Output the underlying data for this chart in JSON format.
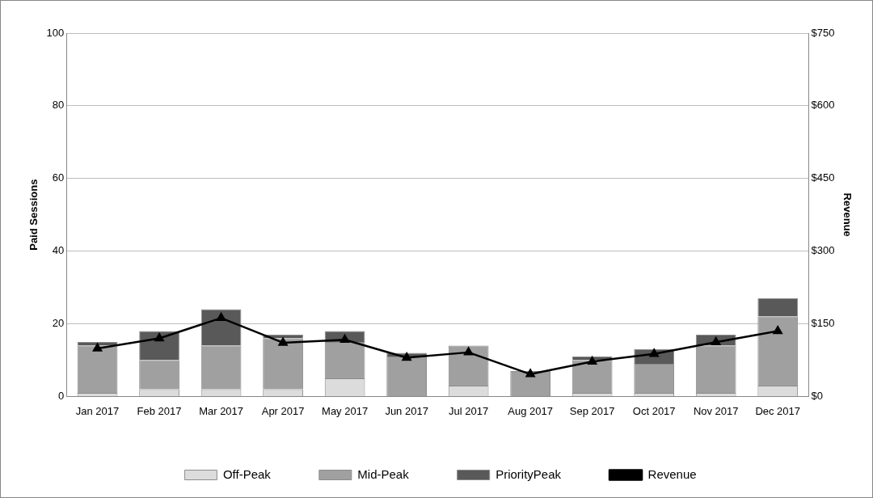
{
  "chart_data": {
    "type": "bar",
    "stacked": true,
    "ylabel": "Paid Sessions",
    "y2label": "Revenue",
    "categories": [
      "Jan 2017",
      "Feb 2017",
      "Mar 2017",
      "Apr 2017",
      "May 2017",
      "Jun 2017",
      "Jul 2017",
      "Aug 2017",
      "Sep 2017",
      "Oct 2017",
      "Nov 2017",
      "Dec 2017"
    ],
    "series": [
      {
        "name": "Off-Peak",
        "color": "#dcdcdc",
        "values": [
          1,
          2,
          2,
          2,
          5,
          0,
          3,
          0,
          1,
          1,
          1,
          3
        ]
      },
      {
        "name": "Mid-Peak",
        "color": "#a0a0a0",
        "values": [
          13,
          8,
          12,
          14,
          10,
          11,
          11,
          7,
          9,
          8,
          13,
          19
        ]
      },
      {
        "name": "PriorityPeak",
        "color": "#595959",
        "values": [
          1,
          8,
          10,
          1,
          3,
          1,
          0,
          0,
          1,
          4,
          3,
          5
        ]
      },
      {
        "name": "Revenue",
        "type": "line",
        "axis": "y2",
        "color": "#000000",
        "marker": "triangle",
        "values": [
          99,
          120,
          162,
          111,
          117,
          80,
          91,
          46,
          72,
          88,
          112,
          135
        ]
      }
    ],
    "ylim": [
      0,
      100
    ],
    "yticks": [
      0,
      20,
      40,
      60,
      80,
      100
    ],
    "y2lim": [
      0,
      750
    ],
    "y2ticks": [
      {
        "value": 0,
        "label": "$0"
      },
      {
        "value": 150,
        "label": "$150"
      },
      {
        "value": 300,
        "label": "$300"
      },
      {
        "value": 450,
        "label": "$450"
      },
      {
        "value": 600,
        "label": "$600"
      },
      {
        "value": 750,
        "label": "$750"
      }
    ],
    "grid": "y",
    "legend": "bottom"
  }
}
